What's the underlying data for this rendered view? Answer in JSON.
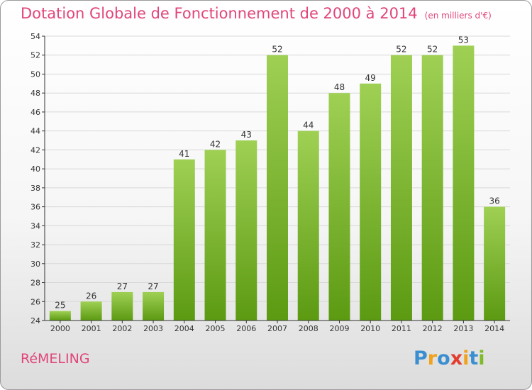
{
  "title": {
    "main": "Dotation Globale de Fonctionnement de 2000 à 2014",
    "unit": "(en milliers d'€)"
  },
  "town": "RéMELING",
  "logo": {
    "text": "Proxiti",
    "letters": [
      "P",
      "r",
      "o",
      "x",
      "i",
      "t",
      "i"
    ],
    "colors": [
      "#3b8fd0",
      "#f0a21c",
      "#3b8fd0",
      "#e23d2e",
      "#f0a21c",
      "#3b8fd0",
      "#7fba2a"
    ]
  },
  "chart_data": {
    "type": "bar",
    "categories": [
      "2000",
      "2001",
      "2002",
      "2003",
      "2004",
      "2005",
      "2006",
      "2007",
      "2008",
      "2009",
      "2010",
      "2011",
      "2012",
      "2013",
      "2014"
    ],
    "values": [
      25,
      26,
      27,
      27,
      41,
      42,
      43,
      52,
      44,
      48,
      49,
      52,
      52,
      53,
      36
    ],
    "data_labels": [
      "25",
      "26",
      "27",
      "27",
      "41",
      "42",
      "43",
      "52",
      "44",
      "48",
      "49",
      "52",
      "52",
      "53",
      "36"
    ],
    "ylim": [
      24,
      54
    ],
    "yticks": [
      24,
      26,
      28,
      30,
      32,
      34,
      36,
      38,
      40,
      42,
      44,
      46,
      48,
      50,
      52,
      54
    ],
    "grid": true,
    "colors": {
      "bar_light": "#9fd054",
      "bar_dark": "#5c9a12",
      "grid": "#d8d8d8",
      "axis": "#333333"
    }
  }
}
